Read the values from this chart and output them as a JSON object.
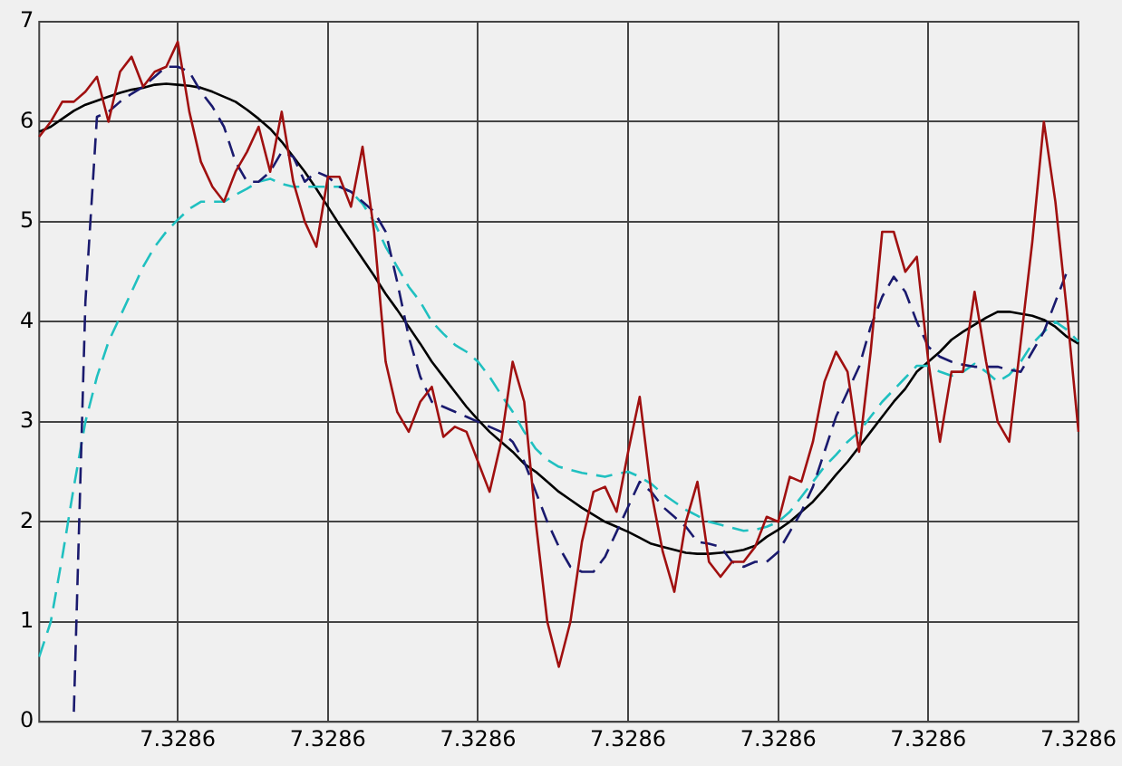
{
  "chart_data": {
    "type": "line",
    "ylim": [
      0,
      7
    ],
    "yticks": [
      0,
      1,
      2,
      3,
      4,
      5,
      6,
      7
    ],
    "grid": true,
    "marker": "none",
    "legend": false,
    "categories": [
      null,
      null,
      null,
      null,
      null,
      null,
      null,
      null,
      null,
      null,
      null,
      null,
      "7.3286",
      null,
      null,
      null,
      null,
      null,
      null,
      null,
      null,
      null,
      null,
      null,
      null,
      "7.3286",
      null,
      null,
      null,
      null,
      null,
      null,
      null,
      null,
      null,
      null,
      null,
      null,
      "7.3286",
      null,
      null,
      null,
      null,
      null,
      null,
      null,
      null,
      null,
      null,
      null,
      null,
      "7.3286",
      null,
      null,
      null,
      null,
      null,
      null,
      null,
      null,
      null,
      null,
      null,
      null,
      "7.3286",
      null,
      null,
      null,
      null,
      null,
      null,
      null,
      null,
      null,
      null,
      null,
      null,
      "7.3286",
      null,
      null,
      null,
      null,
      null,
      null,
      null,
      null,
      null,
      null,
      null,
      null,
      "7.3286"
    ],
    "series": [
      {
        "color": "#a01010",
        "line_style": "solid",
        "values": [
          5.85,
          6.0,
          6.2,
          6.2,
          6.3,
          6.45,
          6.0,
          6.5,
          6.65,
          6.35,
          6.5,
          6.55,
          6.8,
          6.1,
          5.6,
          5.35,
          5.2,
          5.5,
          5.7,
          5.95,
          5.5,
          6.1,
          5.4,
          5.0,
          4.75,
          5.45,
          5.45,
          5.15,
          5.75,
          4.9,
          3.6,
          3.1,
          2.9,
          3.2,
          3.35,
          2.85,
          2.95,
          2.9,
          2.6,
          2.3,
          2.8,
          3.6,
          3.2,
          2.0,
          1.0,
          0.55,
          1.0,
          1.8,
          2.3,
          2.35,
          2.1,
          2.7,
          3.25,
          2.3,
          1.7,
          1.3,
          2.0,
          2.4,
          1.6,
          1.45,
          1.6,
          1.6,
          1.75,
          2.05,
          2.0,
          2.45,
          2.4,
          2.8,
          3.4,
          3.7,
          3.5,
          2.7,
          3.7,
          4.9,
          4.9,
          4.5,
          4.65,
          3.6,
          2.8,
          3.5,
          3.5,
          4.3,
          3.6,
          3.0,
          2.8,
          3.8,
          4.8,
          6.0,
          5.2,
          4.1,
          2.9
        ]
      },
      {
        "color": "#1a1a6e",
        "line_style": "dashed",
        "values": [
          null,
          null,
          null,
          0.1,
          4.2,
          6.05,
          6.1,
          6.2,
          6.28,
          6.35,
          6.45,
          6.55,
          6.55,
          6.5,
          6.3,
          6.15,
          5.95,
          5.6,
          5.4,
          5.4,
          5.5,
          5.7,
          5.65,
          5.4,
          5.5,
          5.45,
          5.35,
          5.3,
          5.2,
          5.1,
          4.9,
          4.4,
          3.85,
          3.45,
          3.2,
          3.15,
          3.1,
          3.05,
          3.0,
          2.95,
          2.9,
          2.8,
          2.6,
          2.3,
          2.0,
          1.75,
          1.55,
          1.5,
          1.5,
          1.65,
          1.9,
          2.15,
          2.4,
          2.3,
          2.15,
          2.05,
          1.95,
          1.8,
          1.78,
          1.75,
          1.6,
          1.55,
          1.6,
          1.6,
          1.7,
          1.9,
          2.1,
          2.35,
          2.7,
          3.05,
          3.3,
          3.55,
          3.95,
          4.25,
          4.45,
          4.3,
          4.0,
          3.75,
          3.65,
          3.6,
          3.57,
          3.55,
          3.55,
          3.55,
          3.52,
          3.5,
          3.7,
          3.9,
          4.2,
          4.5,
          null
        ]
      },
      {
        "color": "#20c0c0",
        "line_style": "dashed",
        "values": [
          0.65,
          1.0,
          1.65,
          2.35,
          3.0,
          3.45,
          3.8,
          4.05,
          4.3,
          4.55,
          4.75,
          4.9,
          5.02,
          5.13,
          5.2,
          5.2,
          5.2,
          5.27,
          5.33,
          5.4,
          5.43,
          5.38,
          5.35,
          5.35,
          5.35,
          5.35,
          5.35,
          5.3,
          5.18,
          5.0,
          4.75,
          4.55,
          4.35,
          4.2,
          4.0,
          3.88,
          3.77,
          3.7,
          3.6,
          3.45,
          3.27,
          3.1,
          2.9,
          2.73,
          2.62,
          2.55,
          2.52,
          2.49,
          2.47,
          2.45,
          2.48,
          2.5,
          2.45,
          2.38,
          2.28,
          2.2,
          2.12,
          2.06,
          2.0,
          1.97,
          1.94,
          1.91,
          1.92,
          1.95,
          2.0,
          2.1,
          2.25,
          2.4,
          2.55,
          2.67,
          2.8,
          2.9,
          3.05,
          3.2,
          3.32,
          3.44,
          3.56,
          3.56,
          3.5,
          3.46,
          3.5,
          3.58,
          3.5,
          3.4,
          3.47,
          3.6,
          3.78,
          3.9,
          4.0,
          3.92,
          3.8
        ]
      },
      {
        "color": "#000000",
        "line_style": "solid",
        "values": [
          5.9,
          5.95,
          6.03,
          6.11,
          6.17,
          6.21,
          6.25,
          6.29,
          6.32,
          6.34,
          6.37,
          6.38,
          6.37,
          6.36,
          6.34,
          6.3,
          6.25,
          6.2,
          6.12,
          6.03,
          5.93,
          5.8,
          5.65,
          5.5,
          5.33,
          5.15,
          4.97,
          4.8,
          4.63,
          4.46,
          4.28,
          4.12,
          3.95,
          3.78,
          3.6,
          3.45,
          3.3,
          3.15,
          3.02,
          2.9,
          2.8,
          2.7,
          2.58,
          2.5,
          2.4,
          2.3,
          2.22,
          2.14,
          2.07,
          2.0,
          1.95,
          1.9,
          1.84,
          1.78,
          1.75,
          1.72,
          1.69,
          1.68,
          1.68,
          1.69,
          1.7,
          1.72,
          1.76,
          1.85,
          1.92,
          2.0,
          2.1,
          2.2,
          2.33,
          2.47,
          2.6,
          2.75,
          2.9,
          3.05,
          3.2,
          3.33,
          3.5,
          3.6,
          3.7,
          3.82,
          3.9,
          3.97,
          4.04,
          4.1,
          4.1,
          4.08,
          4.06,
          4.02,
          3.95,
          3.85,
          3.78
        ]
      }
    ]
  }
}
